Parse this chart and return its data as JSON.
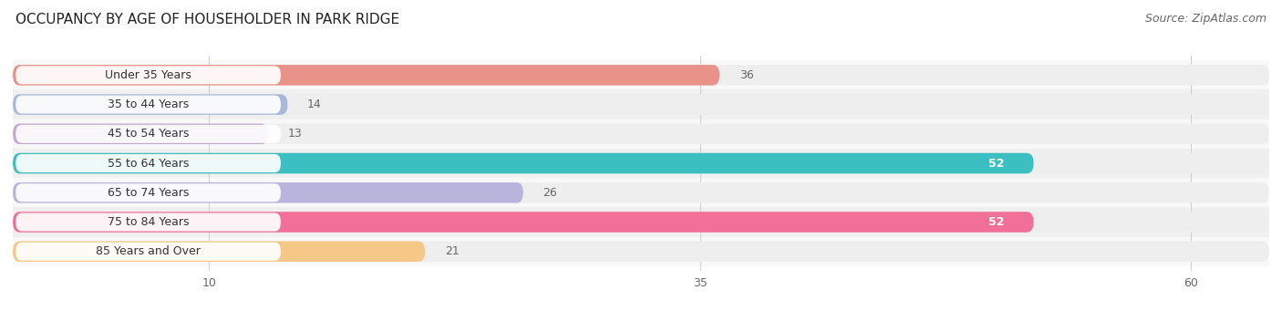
{
  "title": "OCCUPANCY BY AGE OF HOUSEHOLDER IN PARK RIDGE",
  "source": "Source: ZipAtlas.com",
  "categories": [
    "Under 35 Years",
    "35 to 44 Years",
    "45 to 54 Years",
    "55 to 64 Years",
    "65 to 74 Years",
    "75 to 84 Years",
    "85 Years and Over"
  ],
  "values": [
    36,
    14,
    13,
    52,
    26,
    52,
    21
  ],
  "colors": [
    "#E8928A",
    "#A8B8D8",
    "#C4A8D0",
    "#3BBFC0",
    "#B8B4DC",
    "#F07098",
    "#F5C888"
  ],
  "bar_bg_color": "#EEEEEE",
  "row_bg_colors": [
    "#F5F5F5",
    "#F5F5F5"
  ],
  "xticks": [
    10,
    35,
    60
  ],
  "xlim_max": 64,
  "title_fontsize": 11,
  "source_fontsize": 9,
  "label_fontsize": 9,
  "value_fontsize": 9,
  "value_color_inside": "white",
  "value_color_outside": "#666666"
}
